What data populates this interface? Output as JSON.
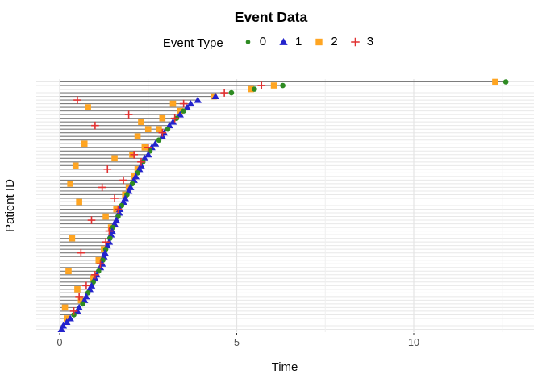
{
  "chart_data": {
    "type": "scatter",
    "title": "Event Data",
    "xlabel": "Time",
    "ylabel": "Patient ID",
    "x_ticks": [
      0,
      5,
      10
    ],
    "x_minor_ticks": [
      2.5,
      7.5,
      12.5
    ],
    "xlim": [
      -0.66,
      13.4
    ],
    "grid": {
      "h_color": "#e8e8e8",
      "v_major_color": "#e4e4e4",
      "v_minor_color": "#efefef",
      "grid_on": true
    },
    "segment_color": "#7d7d7d",
    "tick_color": "#333333",
    "legend": {
      "title": "Event Type",
      "position": "top",
      "items": [
        {
          "label": "0",
          "marker": "circle",
          "color": "#2e8b22"
        },
        {
          "label": "1",
          "marker": "triangle",
          "color": "#2323cc"
        },
        {
          "label": "2",
          "marker": "square",
          "color": "#ffa522"
        },
        {
          "label": "3",
          "marker": "plus",
          "color": "#e03131"
        }
      ]
    },
    "patients": [
      {
        "end": 12.6,
        "end_type": 0,
        "events": [
          [
            2,
            12.3
          ]
        ]
      },
      {
        "end": 6.3,
        "end_type": 0,
        "events": [
          [
            2,
            6.05
          ],
          [
            3,
            5.7
          ]
        ]
      },
      {
        "end": 5.5,
        "end_type": 0,
        "events": [
          [
            2,
            5.4
          ]
        ]
      },
      {
        "end": 4.85,
        "end_type": 0,
        "events": [
          [
            3,
            4.65
          ]
        ]
      },
      {
        "end": 4.4,
        "end_type": 1,
        "events": [
          [
            2,
            4.35
          ]
        ]
      },
      {
        "end": 3.9,
        "end_type": 1,
        "events": [
          [
            3,
            0.5
          ]
        ]
      },
      {
        "end": 3.7,
        "end_type": 1,
        "events": [
          [
            2,
            3.2
          ],
          [
            3,
            3.5
          ]
        ]
      },
      {
        "end": 3.6,
        "end_type": 1,
        "events": [
          [
            2,
            0.8
          ]
        ]
      },
      {
        "end": 3.5,
        "end_type": 0,
        "events": [
          [
            2,
            3.4
          ]
        ]
      },
      {
        "end": 3.4,
        "end_type": 1,
        "events": [
          [
            3,
            1.95
          ]
        ]
      },
      {
        "end": 3.3,
        "end_type": 0,
        "events": [
          [
            2,
            2.9
          ],
          [
            3,
            3.25
          ]
        ]
      },
      {
        "end": 3.2,
        "end_type": 1,
        "events": [
          [
            2,
            2.3
          ]
        ]
      },
      {
        "end": 3.1,
        "end_type": 1,
        "events": [
          [
            3,
            1.0
          ]
        ]
      },
      {
        "end": 3.05,
        "end_type": 0,
        "events": [
          [
            2,
            2.5
          ],
          [
            2,
            2.8
          ]
        ]
      },
      {
        "end": 2.95,
        "end_type": 1,
        "events": [
          [
            3,
            2.9
          ]
        ]
      },
      {
        "end": 2.9,
        "end_type": 1,
        "events": [
          [
            2,
            2.2
          ]
        ]
      },
      {
        "end": 2.8,
        "end_type": 0,
        "events": []
      },
      {
        "end": 2.7,
        "end_type": 1,
        "events": [
          [
            2,
            0.7
          ]
        ]
      },
      {
        "end": 2.6,
        "end_type": 1,
        "events": [
          [
            2,
            2.4
          ],
          [
            3,
            2.5
          ]
        ]
      },
      {
        "end": 2.55,
        "end_type": 0,
        "events": []
      },
      {
        "end": 2.5,
        "end_type": 1,
        "events": [
          [
            2,
            2.05
          ],
          [
            3,
            2.1
          ]
        ]
      },
      {
        "end": 2.4,
        "end_type": 1,
        "events": [
          [
            2,
            1.55
          ]
        ]
      },
      {
        "end": 2.35,
        "end_type": 0,
        "events": [
          [
            3,
            2.3
          ]
        ]
      },
      {
        "end": 2.3,
        "end_type": 1,
        "events": [
          [
            2,
            0.45
          ]
        ]
      },
      {
        "end": 2.25,
        "end_type": 1,
        "events": [
          [
            3,
            1.35
          ],
          [
            2,
            2.2
          ]
        ]
      },
      {
        "end": 2.2,
        "end_type": 0,
        "events": []
      },
      {
        "end": 2.15,
        "end_type": 1,
        "events": [
          [
            2,
            2.1
          ]
        ]
      },
      {
        "end": 2.1,
        "end_type": 1,
        "events": [
          [
            3,
            1.8
          ]
        ]
      },
      {
        "end": 2.05,
        "end_type": 0,
        "events": [
          [
            2,
            0.3
          ]
        ]
      },
      {
        "end": 2.0,
        "end_type": 1,
        "events": [
          [
            3,
            1.2
          ],
          [
            2,
            1.95
          ]
        ]
      },
      {
        "end": 1.95,
        "end_type": 1,
        "events": []
      },
      {
        "end": 1.9,
        "end_type": 0,
        "events": [
          [
            2,
            1.85
          ]
        ]
      },
      {
        "end": 1.85,
        "end_type": 1,
        "events": [
          [
            3,
            1.55
          ]
        ]
      },
      {
        "end": 1.8,
        "end_type": 1,
        "events": [
          [
            2,
            0.55
          ]
        ]
      },
      {
        "end": 1.75,
        "end_type": 0,
        "events": []
      },
      {
        "end": 1.7,
        "end_type": 1,
        "events": [
          [
            2,
            1.6
          ],
          [
            3,
            1.65
          ]
        ]
      },
      {
        "end": 1.68,
        "end_type": 1,
        "events": []
      },
      {
        "end": 1.65,
        "end_type": 0,
        "events": [
          [
            2,
            1.3
          ]
        ]
      },
      {
        "end": 1.6,
        "end_type": 1,
        "events": [
          [
            3,
            0.9
          ]
        ]
      },
      {
        "end": 1.55,
        "end_type": 1,
        "events": []
      },
      {
        "end": 1.5,
        "end_type": 0,
        "events": [
          [
            2,
            1.45
          ]
        ]
      },
      {
        "end": 1.48,
        "end_type": 1,
        "events": [
          [
            3,
            1.4
          ]
        ]
      },
      {
        "end": 1.45,
        "end_type": 1,
        "events": []
      },
      {
        "end": 1.42,
        "end_type": 0,
        "events": [
          [
            2,
            0.35
          ]
        ]
      },
      {
        "end": 1.4,
        "end_type": 1,
        "events": [
          [
            3,
            1.3
          ]
        ]
      },
      {
        "end": 1.35,
        "end_type": 1,
        "events": []
      },
      {
        "end": 1.3,
        "end_type": 0,
        "events": [
          [
            2,
            1.25
          ]
        ]
      },
      {
        "end": 1.28,
        "end_type": 1,
        "events": [
          [
            3,
            0.6
          ]
        ]
      },
      {
        "end": 1.25,
        "end_type": 1,
        "events": []
      },
      {
        "end": 1.22,
        "end_type": 0,
        "events": [
          [
            2,
            1.1
          ]
        ]
      },
      {
        "end": 1.2,
        "end_type": 1,
        "events": [
          [
            3,
            1.15
          ]
        ]
      },
      {
        "end": 1.15,
        "end_type": 1,
        "events": []
      },
      {
        "end": 1.1,
        "end_type": 0,
        "events": [
          [
            2,
            0.25
          ]
        ]
      },
      {
        "end": 1.05,
        "end_type": 1,
        "events": [
          [
            3,
            1.0
          ]
        ]
      },
      {
        "end": 1.0,
        "end_type": 1,
        "events": [
          [
            2,
            0.95
          ]
        ]
      },
      {
        "end": 0.95,
        "end_type": 0,
        "events": []
      },
      {
        "end": 0.9,
        "end_type": 1,
        "events": [
          [
            3,
            0.75
          ]
        ]
      },
      {
        "end": 0.85,
        "end_type": 1,
        "events": [
          [
            2,
            0.5
          ]
        ]
      },
      {
        "end": 0.8,
        "end_type": 0,
        "events": []
      },
      {
        "end": 0.75,
        "end_type": 1,
        "events": [
          [
            3,
            0.55
          ]
        ]
      },
      {
        "end": 0.7,
        "end_type": 1,
        "events": [
          [
            2,
            0.6
          ]
        ]
      },
      {
        "end": 0.65,
        "end_type": 0,
        "events": []
      },
      {
        "end": 0.55,
        "end_type": 1,
        "events": [
          [
            2,
            0.15
          ]
        ]
      },
      {
        "end": 0.5,
        "end_type": 1,
        "events": [
          [
            3,
            0.4
          ]
        ]
      },
      {
        "end": 0.4,
        "end_type": 0,
        "events": []
      },
      {
        "end": 0.3,
        "end_type": 1,
        "events": [
          [
            2,
            0.2
          ]
        ]
      },
      {
        "end": 0.2,
        "end_type": 1,
        "events": []
      },
      {
        "end": 0.1,
        "end_type": 1,
        "events": []
      },
      {
        "end": 0.05,
        "end_type": 1,
        "events": []
      }
    ]
  }
}
